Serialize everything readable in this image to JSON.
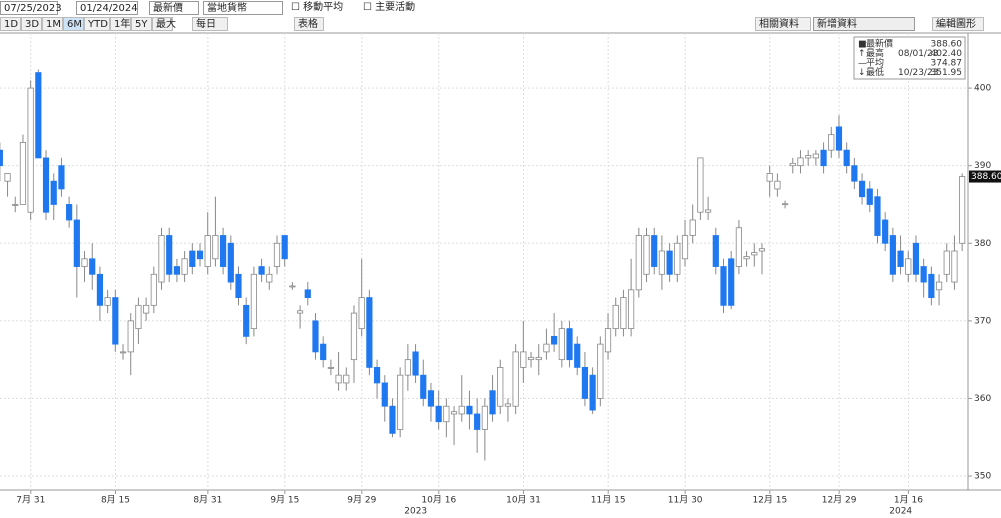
{
  "toolbar": {
    "start_date": "07/25/2023",
    "end_date": "01/24/2024",
    "field": "最新價",
    "currency": "當地貨幣",
    "moving_average": "移動平均",
    "events": "主要活動",
    "ranges": [
      "1D",
      "3D",
      "1M",
      "6M",
      "YTD",
      "1年",
      "5Y",
      "最大"
    ],
    "active_range": "6M",
    "period": "每日",
    "table": "表格",
    "related": "相關資料",
    "add_data": "新增資料",
    "edit_chart": "編輯圖形"
  },
  "chart_data": {
    "type": "candlestick",
    "ohlc": [
      [
        392,
        393,
        388,
        390
      ],
      [
        388,
        389,
        386,
        389
      ],
      [
        385,
        386,
        384,
        385
      ],
      [
        385,
        394,
        385,
        393
      ],
      [
        384,
        401,
        383,
        400
      ],
      [
        402,
        402.4,
        391,
        391
      ],
      [
        391,
        392,
        383,
        384
      ],
      [
        388,
        389,
        383,
        385
      ],
      [
        390,
        391,
        386,
        387
      ],
      [
        385,
        386,
        382,
        383
      ],
      [
        383,
        385,
        373,
        377
      ],
      [
        377,
        379,
        375,
        378
      ],
      [
        378,
        380,
        374,
        376
      ],
      [
        376,
        377,
        370,
        372
      ],
      [
        372,
        374,
        371,
        373
      ],
      [
        373,
        374,
        366,
        367
      ],
      [
        366,
        367,
        365,
        366
      ],
      [
        366,
        371,
        363,
        370
      ],
      [
        369,
        373,
        367,
        372
      ],
      [
        371,
        373,
        370,
        372
      ],
      [
        372,
        377,
        371,
        376
      ],
      [
        375,
        382,
        374,
        381
      ],
      [
        381,
        382,
        375,
        376
      ],
      [
        377,
        378,
        375,
        376
      ],
      [
        376,
        379,
        375,
        378
      ],
      [
        379,
        380,
        376,
        377
      ],
      [
        379,
        380,
        377,
        378
      ],
      [
        377,
        384,
        376,
        381
      ],
      [
        378,
        386,
        377,
        381
      ],
      [
        381,
        382,
        376,
        377
      ],
      [
        380,
        381,
        374,
        375
      ],
      [
        376,
        377,
        372,
        373
      ],
      [
        372,
        373,
        367,
        368
      ],
      [
        369,
        377,
        368,
        376
      ],
      [
        377,
        378,
        375,
        376
      ],
      [
        375,
        377,
        374,
        376
      ],
      [
        377,
        381,
        376,
        380
      ],
      [
        381,
        381,
        377,
        378
      ],
      [
        374.5,
        375,
        374,
        374.5
      ],
      [
        371,
        372,
        369,
        371.3
      ],
      [
        374,
        375,
        372,
        373
      ],
      [
        370,
        371,
        365,
        366
      ],
      [
        367,
        368,
        364,
        365
      ],
      [
        364,
        365,
        363,
        364
      ],
      [
        362,
        366,
        361,
        363
      ],
      [
        362,
        364,
        361,
        363
      ],
      [
        365,
        372,
        362,
        371
      ],
      [
        369,
        378,
        368,
        373
      ],
      [
        373,
        374,
        363,
        364
      ],
      [
        364,
        365,
        360,
        362
      ],
      [
        362,
        363,
        357,
        359
      ],
      [
        359,
        360,
        355,
        355.5
      ],
      [
        356,
        364,
        355,
        363
      ],
      [
        363,
        367,
        361,
        365
      ],
      [
        366,
        367,
        362,
        363
      ],
      [
        363,
        365,
        359,
        360
      ],
      [
        361,
        362,
        357,
        359
      ],
      [
        359,
        361,
        356,
        357
      ],
      [
        357,
        360,
        355,
        359
      ],
      [
        358,
        359,
        354,
        358.3
      ],
      [
        358,
        363,
        357,
        359
      ],
      [
        359,
        361,
        356,
        358
      ],
      [
        358,
        360,
        353,
        356
      ],
      [
        356,
        360,
        352,
        359
      ],
      [
        361,
        363,
        357,
        358
      ],
      [
        359,
        365,
        358,
        364
      ],
      [
        359,
        360,
        357,
        359.3
      ],
      [
        359,
        367,
        358,
        366
      ],
      [
        364,
        370,
        362,
        366
      ],
      [
        365,
        366,
        364,
        365.3
      ],
      [
        365,
        367,
        363,
        365.3
      ],
      [
        366,
        369,
        365,
        367
      ],
      [
        368,
        371,
        366,
        367
      ],
      [
        365,
        370,
        364,
        369
      ],
      [
        369,
        370,
        364,
        365
      ],
      [
        367,
        368,
        363,
        364
      ],
      [
        364,
        366,
        359,
        360
      ],
      [
        363,
        364,
        358,
        358.5
      ],
      [
        360,
        368,
        359,
        367
      ],
      [
        366,
        371,
        365,
        369
      ],
      [
        369,
        373,
        368,
        372
      ],
      [
        369,
        374,
        368,
        373
      ],
      [
        369,
        378,
        368,
        374
      ],
      [
        374,
        382,
        373,
        381
      ],
      [
        376,
        382,
        375,
        381
      ],
      [
        381,
        382,
        376,
        377
      ],
      [
        376,
        381,
        374,
        379
      ],
      [
        379,
        380,
        375,
        376
      ],
      [
        376,
        381,
        375,
        380
      ],
      [
        378,
        383,
        377,
        381
      ],
      [
        381,
        385,
        380,
        383
      ],
      [
        384,
        391,
        383,
        391
      ],
      [
        384,
        386,
        383,
        384.3
      ],
      [
        381,
        382,
        376,
        377
      ],
      [
        377,
        378,
        371,
        372
      ],
      [
        378,
        379,
        371.5,
        372
      ],
      [
        377,
        383,
        376,
        382
      ],
      [
        378,
        379,
        377,
        378.3
      ],
      [
        378.5,
        380,
        377,
        378.8
      ],
      [
        379,
        380,
        376,
        379.3
      ],
      [
        388,
        390,
        386,
        389
      ],
      [
        387,
        389,
        386,
        388
      ],
      [
        385,
        385.5,
        384.5,
        385.1
      ],
      [
        390,
        391,
        389,
        390.3
      ],
      [
        390,
        392,
        389,
        391
      ],
      [
        391,
        392,
        390,
        391.3
      ],
      [
        391,
        392,
        390,
        391.5
      ],
      [
        392,
        393,
        389,
        390
      ],
      [
        392,
        395,
        391,
        394
      ],
      [
        395,
        396.5,
        391,
        392
      ],
      [
        392,
        393,
        389,
        390
      ],
      [
        390,
        391,
        387,
        388
      ],
      [
        388,
        389,
        385,
        386
      ],
      [
        387,
        388,
        384,
        385
      ],
      [
        386,
        387,
        380,
        381
      ],
      [
        383,
        384,
        379,
        380
      ],
      [
        381,
        382,
        375,
        376
      ],
      [
        379,
        381,
        376,
        377
      ],
      [
        376,
        379,
        375,
        378
      ],
      [
        380,
        381,
        375,
        376
      ],
      [
        377,
        378,
        373,
        375
      ],
      [
        376,
        377,
        372,
        373
      ],
      [
        374,
        376,
        372,
        375
      ],
      [
        376,
        380,
        375,
        379
      ],
      [
        375,
        381,
        374,
        379
      ],
      [
        380,
        389,
        379,
        388.6
      ]
    ],
    "up_color": "#ffffff",
    "down_color": "#1f78f0",
    "xlim": [
      0,
      126
    ],
    "xticks": [
      {
        "value": 4,
        "label": "7月 31"
      },
      {
        "value": 15,
        "label": "8月 15"
      },
      {
        "value": 27,
        "label": "8月 31"
      },
      {
        "value": 37,
        "label": "9月 15"
      },
      {
        "value": 47,
        "label": "9月 29"
      },
      {
        "value": 57,
        "label": "10月 16"
      },
      {
        "value": 68,
        "label": "10月 31"
      },
      {
        "value": 79,
        "label": "11月 15"
      },
      {
        "value": 89,
        "label": "11月 30"
      },
      {
        "value": 100,
        "label": "12月 15"
      },
      {
        "value": 109,
        "label": "12月 29"
      },
      {
        "value": 118,
        "label": "1月 16"
      }
    ],
    "years": [
      {
        "value": 54,
        "label": "2023"
      },
      {
        "value": 117,
        "label": "2024"
      }
    ],
    "ylim": [
      348.2,
      407.1
    ],
    "yticks": [
      350,
      360,
      370,
      380,
      390,
      400
    ],
    "grid": true,
    "legend": [
      {
        "symbol": "■",
        "label": "最新價",
        "date": "",
        "value": "388.60"
      },
      {
        "symbol": "↑",
        "label": "最高",
        "date": "08/01/23",
        "value": "402.40"
      },
      {
        "symbol": "—",
        "label": "平均",
        "date": "",
        "value": "374.87"
      },
      {
        "symbol": "↓",
        "label": "最低",
        "date": "10/23/23",
        "value": "351.95"
      }
    ]
  }
}
